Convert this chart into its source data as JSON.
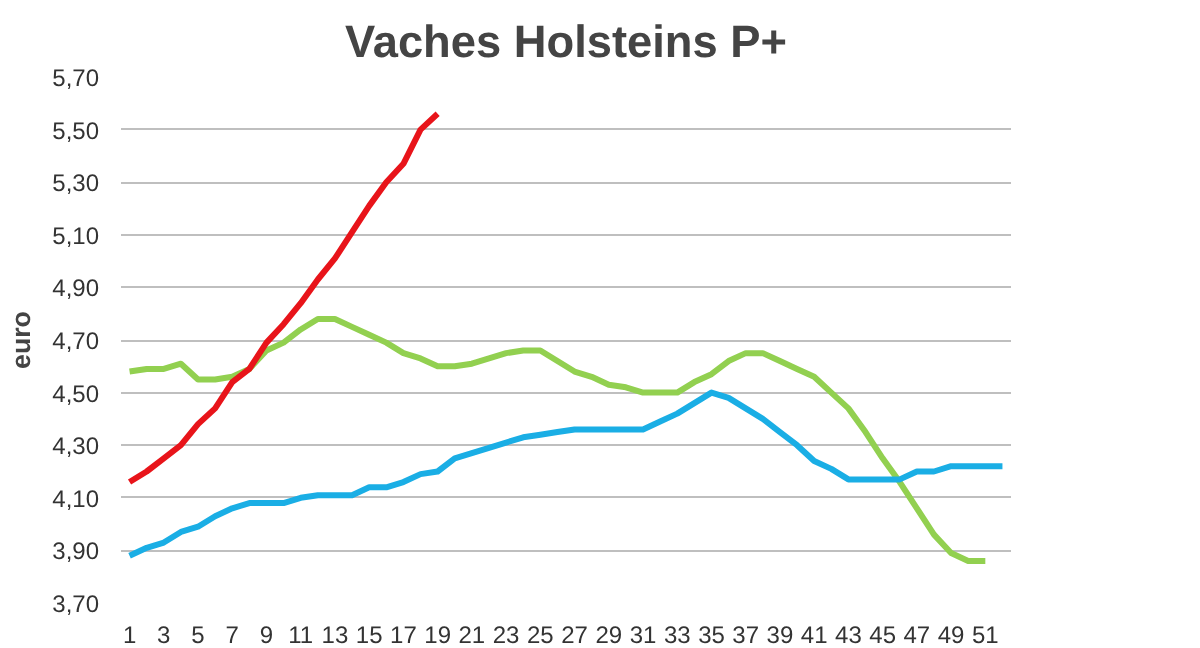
{
  "chart_data": {
    "type": "line",
    "title": "Vaches Holsteins P+",
    "ylabel": "euro",
    "x": [
      1,
      2,
      3,
      4,
      5,
      6,
      7,
      8,
      9,
      10,
      11,
      12,
      13,
      14,
      15,
      16,
      17,
      18,
      19,
      20,
      21,
      22,
      23,
      24,
      25,
      26,
      27,
      28,
      29,
      30,
      31,
      32,
      33,
      34,
      35,
      36,
      37,
      38,
      39,
      40,
      41,
      42,
      43,
      44,
      45,
      46,
      47,
      48,
      49,
      50,
      51,
      52
    ],
    "xlim": [
      0.5,
      52.5
    ],
    "xticks": [
      1,
      3,
      5,
      7,
      9,
      11,
      13,
      15,
      17,
      19,
      21,
      23,
      25,
      27,
      29,
      31,
      33,
      35,
      37,
      39,
      41,
      43,
      45,
      47,
      49,
      51
    ],
    "ylim": [
      3.7,
      5.7
    ],
    "yticks": [
      {
        "value": 3.7,
        "label": "3,70"
      },
      {
        "value": 3.9,
        "label": "3,90"
      },
      {
        "value": 4.1,
        "label": "4,10"
      },
      {
        "value": 4.3,
        "label": "4,30"
      },
      {
        "value": 4.5,
        "label": "4,50"
      },
      {
        "value": 4.7,
        "label": "4,70"
      },
      {
        "value": 4.9,
        "label": "4,90"
      },
      {
        "value": 5.1,
        "label": "5,10"
      },
      {
        "value": 5.3,
        "label": "5,30"
      },
      {
        "value": 5.5,
        "label": "5,50"
      },
      {
        "value": 5.7,
        "label": "5,70"
      }
    ],
    "grid": "y",
    "marker": "none",
    "line_style": "solid",
    "legend": false,
    "series": [
      {
        "color": "#92d050",
        "values": [
          4.58,
          4.59,
          4.59,
          4.61,
          4.55,
          4.55,
          4.56,
          4.59,
          4.66,
          4.69,
          4.74,
          4.78,
          4.78,
          4.75,
          4.72,
          4.69,
          4.65,
          4.63,
          4.6,
          4.6,
          4.61,
          4.63,
          4.65,
          4.66,
          4.66,
          4.62,
          4.58,
          4.56,
          4.53,
          4.52,
          4.5,
          4.5,
          4.5,
          4.54,
          4.57,
          4.62,
          4.65,
          4.65,
          4.62,
          4.59,
          4.56,
          4.5,
          4.44,
          4.35,
          4.25,
          4.16,
          4.06,
          3.96,
          3.89,
          3.86,
          3.86,
          null
        ]
      },
      {
        "color": "#1aaee5",
        "values": [
          3.88,
          3.91,
          3.93,
          3.97,
          3.99,
          4.03,
          4.06,
          4.08,
          4.08,
          4.08,
          4.1,
          4.11,
          4.11,
          4.11,
          4.14,
          4.14,
          4.16,
          4.19,
          4.2,
          4.25,
          4.27,
          4.29,
          4.31,
          4.33,
          4.34,
          4.35,
          4.36,
          4.36,
          4.36,
          4.36,
          4.36,
          4.39,
          4.42,
          4.46,
          4.5,
          4.48,
          4.44,
          4.4,
          4.35,
          4.3,
          4.24,
          4.21,
          4.17,
          4.17,
          4.17,
          4.17,
          4.2,
          4.2,
          4.22,
          4.22,
          4.22,
          4.22
        ]
      },
      {
        "color": "#e8141a",
        "values": [
          4.16,
          4.2,
          4.25,
          4.3,
          4.38,
          4.44,
          4.54,
          4.59,
          4.69,
          4.76,
          4.84,
          4.93,
          5.01,
          5.11,
          5.21,
          5.3,
          5.37,
          5.5,
          5.56,
          null,
          null,
          null,
          null,
          null,
          null,
          null,
          null,
          null,
          null,
          null,
          null,
          null,
          null,
          null,
          null,
          null,
          null,
          null,
          null,
          null,
          null,
          null,
          null,
          null,
          null,
          null,
          null,
          null,
          null,
          null,
          null,
          null
        ]
      }
    ]
  }
}
